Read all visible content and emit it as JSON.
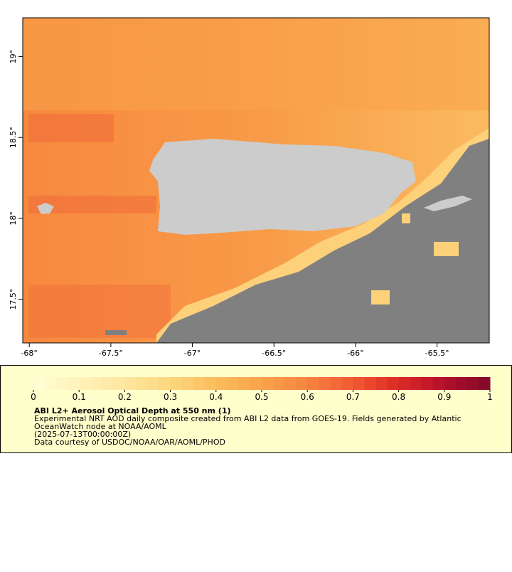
{
  "map": {
    "xlim": [
      -68.04,
      -65.18
    ],
    "ylim": [
      17.23,
      19.24
    ],
    "x_ticks": [
      {
        "value": -68,
        "label": "-68°"
      },
      {
        "value": -67.5,
        "label": "-67.5°"
      },
      {
        "value": -67,
        "label": "-67°"
      },
      {
        "value": -66.5,
        "label": "-66.5°"
      },
      {
        "value": -66,
        "label": "-66°"
      },
      {
        "value": -65.5,
        "label": "-65.5°"
      }
    ],
    "y_ticks": [
      {
        "value": 19,
        "label": "19°"
      },
      {
        "value": 18.5,
        "label": "18.5°"
      },
      {
        "value": 18,
        "label": "18°"
      },
      {
        "value": 17.5,
        "label": "17.5°"
      }
    ],
    "colorbar": {
      "range": [
        0,
        1
      ],
      "ticks": [
        0,
        0.1,
        0.2,
        0.3,
        0.4,
        0.5,
        0.6,
        0.7,
        0.8,
        0.9,
        1
      ],
      "colors": [
        "#ffffd4",
        "#fff2b8",
        "#fee6a0",
        "#fdd67e",
        "#fbbd5c",
        "#f9a24a",
        "#f7843f",
        "#f05a33",
        "#dc2a26",
        "#b40f2a",
        "#7f0a2a"
      ]
    },
    "caption": {
      "title": "ABI L2+ Aerosol Optical Depth at 550 nm (1)",
      "lines": [
        "Experimental NRT AOD daily composite created from ABI L2 data from GOES-19. Fields generated by Atlantic",
        "OceanWatch node at NOAA/AOML",
        "(2025-07-13T00:00:00Z)",
        "Data courtesy of USDOC/NOAA/OAR/AOML/PHOD"
      ]
    }
  }
}
